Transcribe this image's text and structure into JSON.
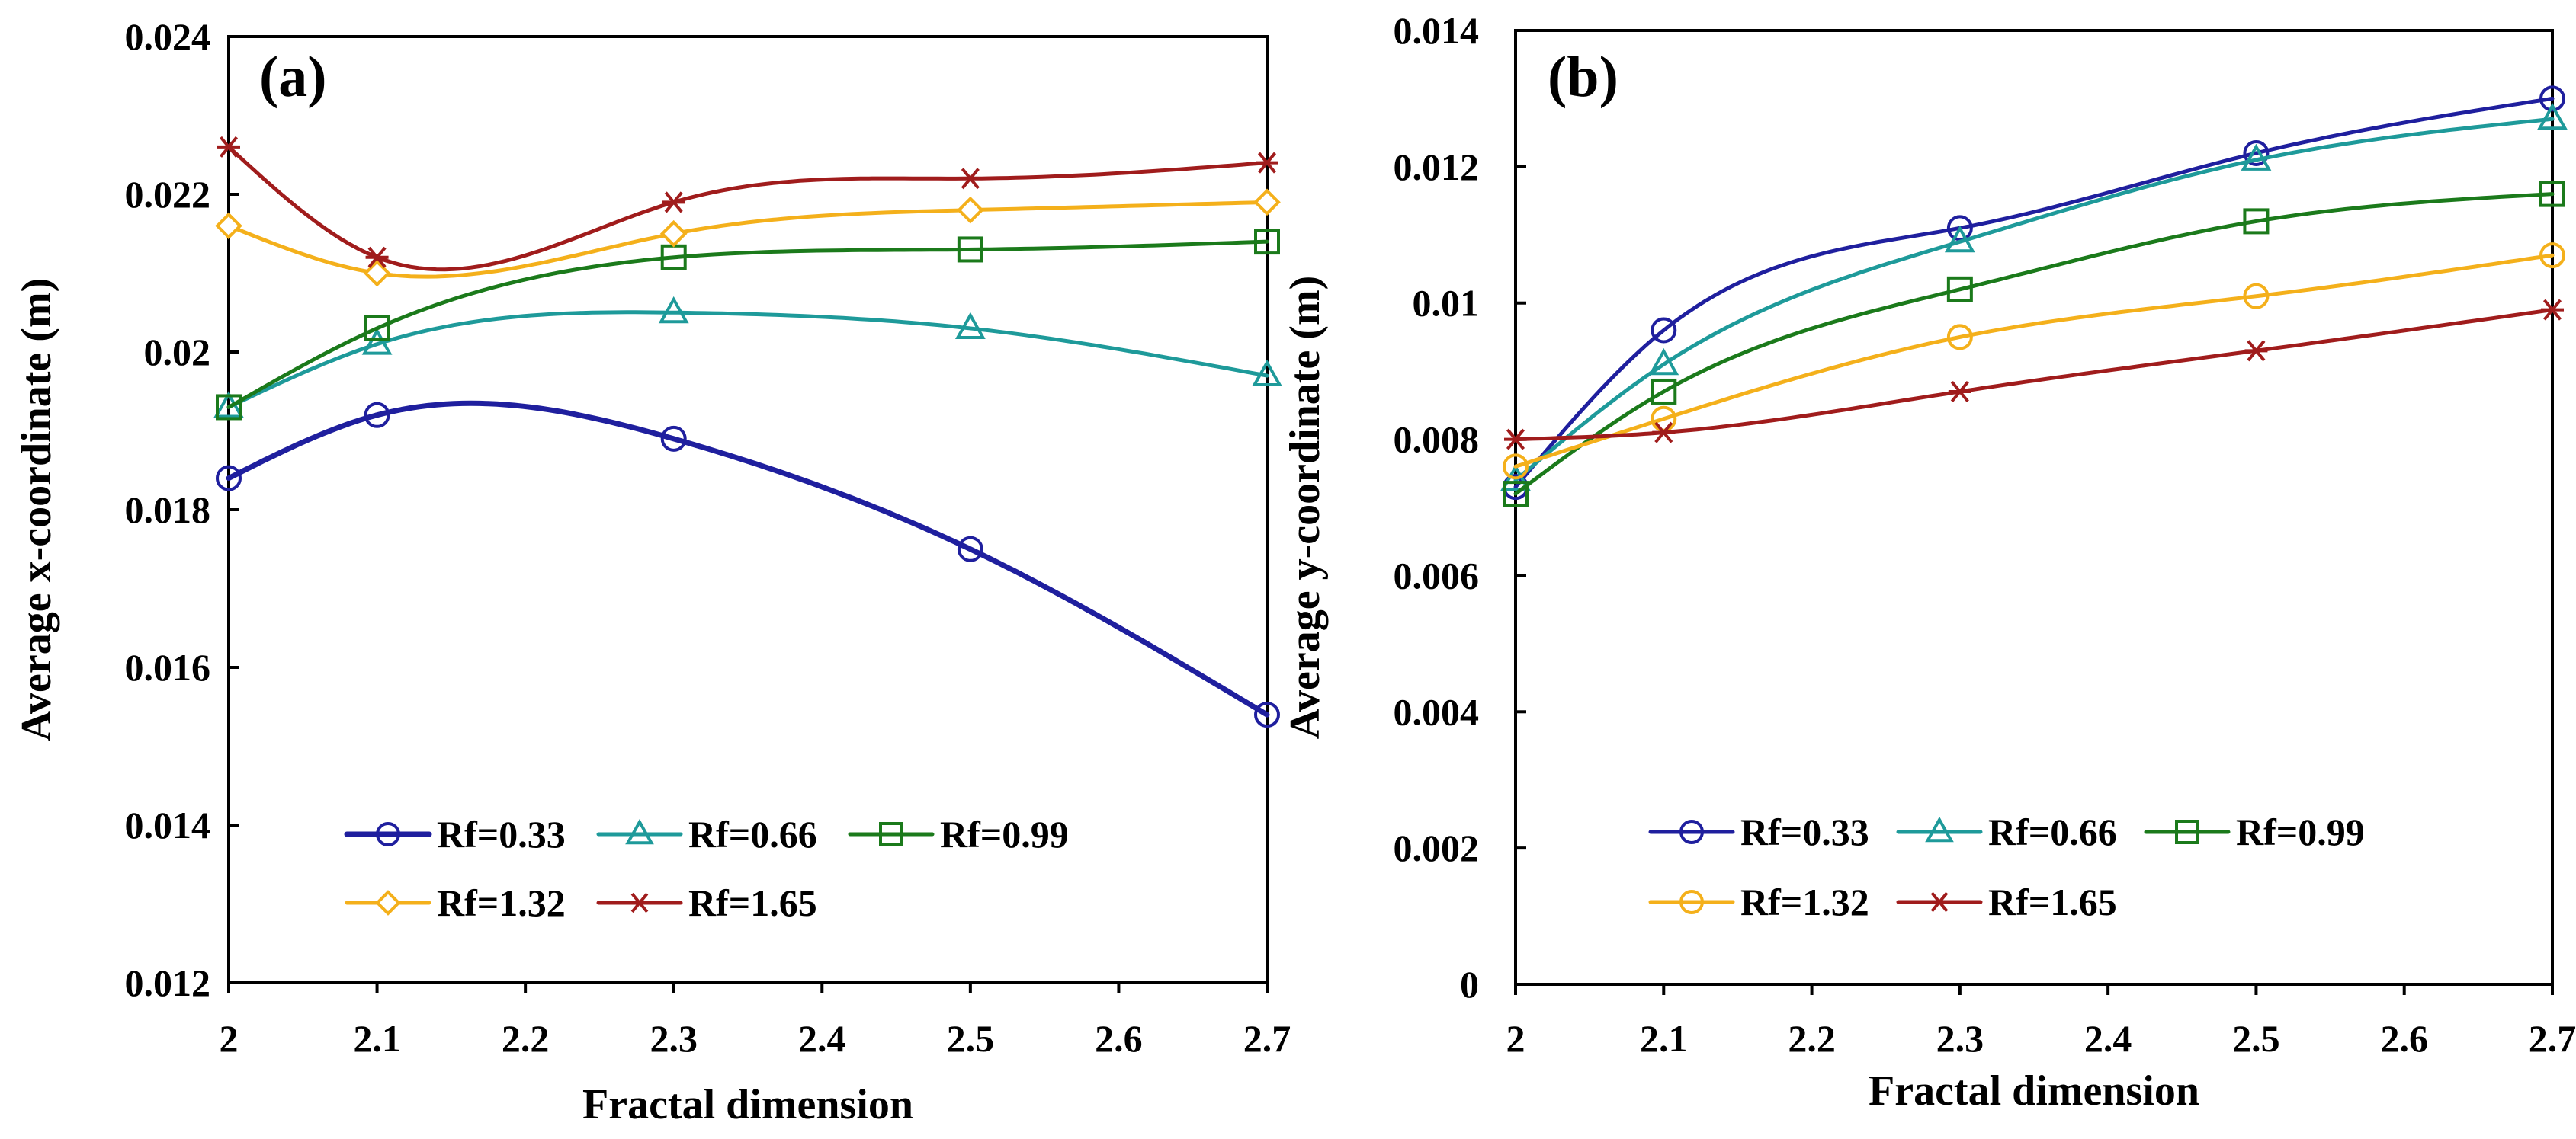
{
  "chart_data": [
    {
      "type": "line",
      "panel_label": "(a)",
      "title": "",
      "xlabel": "Fractal dimension",
      "ylabel": "Average x-coordinate (m)",
      "xlim": [
        2,
        2.7
      ],
      "ylim": [
        0.012,
        0.024
      ],
      "xticks": [
        2,
        2.1,
        2.2,
        2.3,
        2.4,
        2.5,
        2.6,
        2.7
      ],
      "xtick_labels": [
        "2",
        "2.1",
        "2.2",
        "2.3",
        "2.4",
        "2.5",
        "2.6",
        "2.7"
      ],
      "yticks": [
        0.012,
        0.014,
        0.016,
        0.018,
        0.02,
        0.022,
        0.024
      ],
      "ytick_labels": [
        "0.012",
        "0.014",
        "0.016",
        "0.018",
        "0.02",
        "0.022",
        "0.024"
      ],
      "grid": false,
      "legend_position": "bottom-center",
      "x": [
        2,
        2.1,
        2.3,
        2.5,
        2.7
      ],
      "series": [
        {
          "name": "Rf=0.33",
          "color": "#1f1f9e",
          "marker": "circle",
          "values": [
            0.0184,
            0.0192,
            0.0189,
            0.0175,
            0.0154
          ]
        },
        {
          "name": "Rf=0.66",
          "color": "#1e9a9a",
          "marker": "triangle",
          "values": [
            0.0193,
            0.0201,
            0.0205,
            0.0203,
            0.0197
          ]
        },
        {
          "name": "Rf=0.99",
          "color": "#1b7a1b",
          "marker": "square",
          "values": [
            0.0193,
            0.0203,
            0.0212,
            0.0213,
            0.0214
          ]
        },
        {
          "name": "Rf=1.32",
          "color": "#f4b01b",
          "marker": "diamond",
          "values": [
            0.0216,
            0.021,
            0.0215,
            0.0218,
            0.0219
          ]
        },
        {
          "name": "Rf=1.65",
          "color": "#a01c1c",
          "marker": "asterisk",
          "values": [
            0.0226,
            0.0212,
            0.0219,
            0.0222,
            0.0224
          ]
        }
      ]
    },
    {
      "type": "line",
      "panel_label": "(b)",
      "title": "",
      "xlabel": "Fractal dimension",
      "ylabel": "Average y-coordinate (m)",
      "xlim": [
        2,
        2.7
      ],
      "ylim": [
        0,
        0.014
      ],
      "xticks": [
        2,
        2.1,
        2.2,
        2.3,
        2.4,
        2.5,
        2.6,
        2.7
      ],
      "xtick_labels": [
        "2",
        "2.1",
        "2.2",
        "2.3",
        "2.4",
        "2.5",
        "2.6",
        "2.7"
      ],
      "yticks": [
        0,
        0.002,
        0.004,
        0.006,
        0.008,
        0.01,
        0.012,
        0.014
      ],
      "ytick_labels": [
        "0",
        "0.002",
        "0.004",
        "0.006",
        "0.008",
        "0.01",
        "0.012",
        "0.014"
      ],
      "grid": false,
      "legend_position": "bottom-center",
      "x": [
        2,
        2.1,
        2.3,
        2.5,
        2.7
      ],
      "series": [
        {
          "name": "Rf=0.33",
          "color": "#1f1f9e",
          "marker": "circle",
          "values": [
            0.0073,
            0.0096,
            0.0111,
            0.0122,
            0.013
          ]
        },
        {
          "name": "Rf=0.66",
          "color": "#1e9a9a",
          "marker": "triangle",
          "values": [
            0.0074,
            0.0091,
            0.0109,
            0.0121,
            0.0127
          ]
        },
        {
          "name": "Rf=0.99",
          "color": "#1b7a1b",
          "marker": "square",
          "values": [
            0.0072,
            0.0087,
            0.0102,
            0.0112,
            0.0116
          ]
        },
        {
          "name": "Rf=1.32",
          "color": "#f4b01b",
          "marker": "circle",
          "values": [
            0.0076,
            0.0083,
            0.0095,
            0.0101,
            0.0107
          ]
        },
        {
          "name": "Rf=1.65",
          "color": "#a01c1c",
          "marker": "asterisk",
          "values": [
            0.008,
            0.0081,
            0.0087,
            0.0093,
            0.0099
          ]
        }
      ]
    }
  ]
}
